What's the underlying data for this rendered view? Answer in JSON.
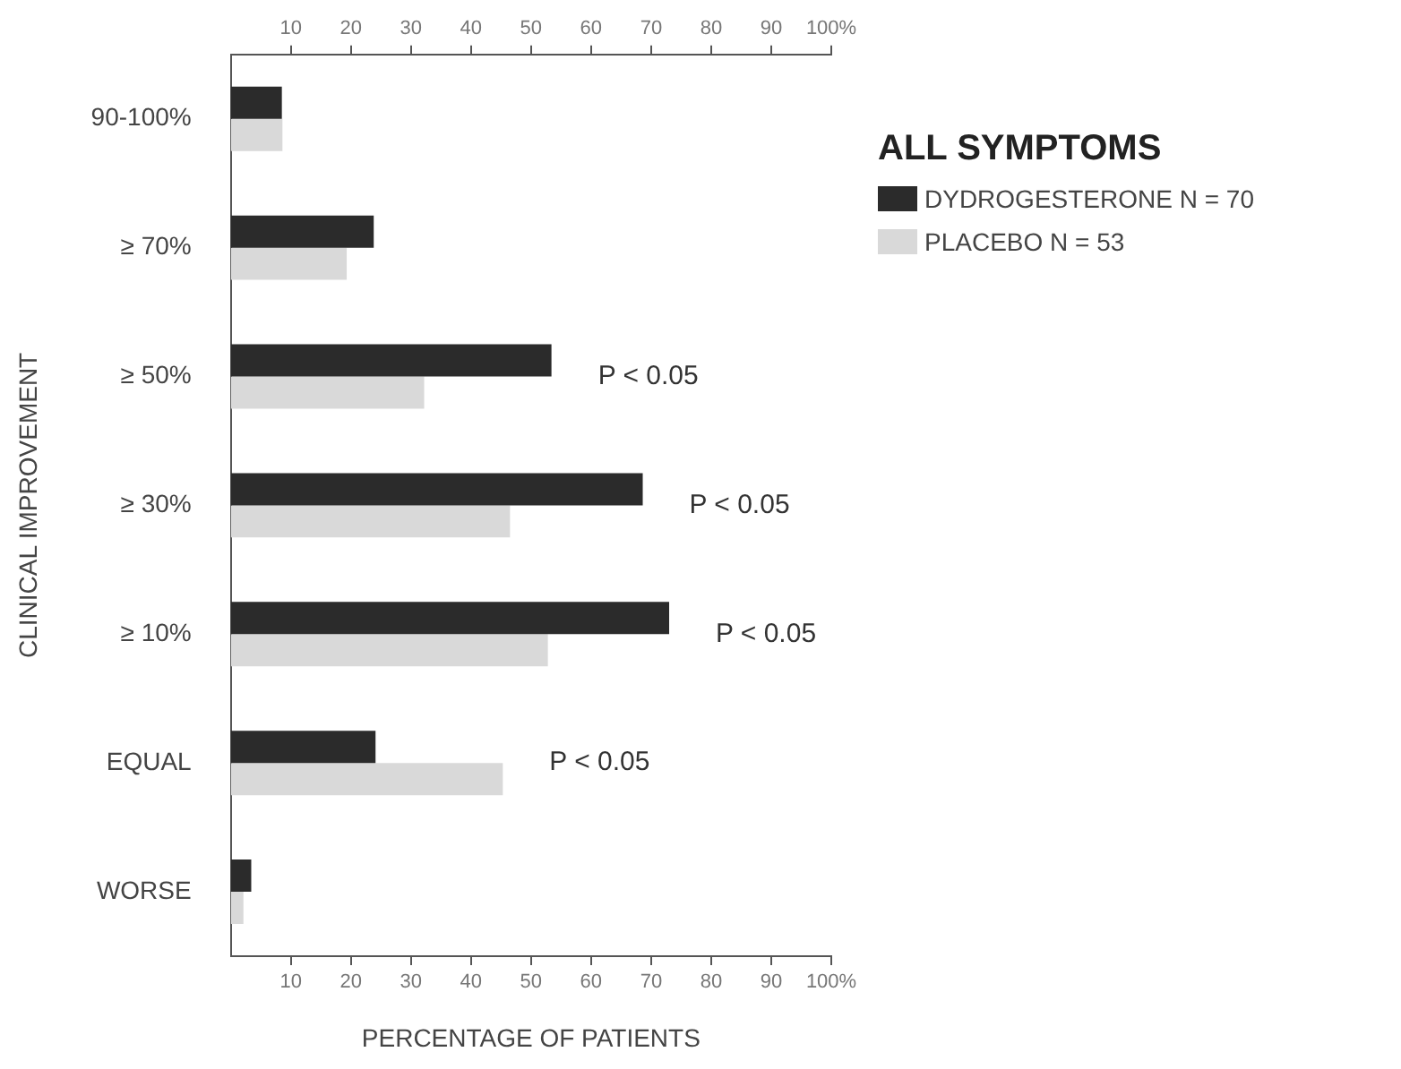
{
  "chart_data": {
    "type": "bar",
    "orientation": "horizontal",
    "title": "ALL SYMPTOMS",
    "xlabel": "PERCENTAGE OF PATIENTS",
    "ylabel": "CLINICAL IMPROVEMENT",
    "categories": [
      "90-100%",
      "≥ 70%",
      "≥ 50%",
      "≥ 30%",
      "≥ 10%",
      "EQUAL",
      "WORSE"
    ],
    "series": [
      {
        "name": "DYDROGESTERONE N = 70",
        "color": "#2b2b2b",
        "values": [
          8.5,
          23.8,
          53.4,
          68.6,
          73.0,
          24.1,
          3.4
        ]
      },
      {
        "name": "PLACEBO N = 53",
        "color": "#d9d9d9",
        "values": [
          8.6,
          19.3,
          32.2,
          46.5,
          52.8,
          45.3,
          2.1
        ]
      }
    ],
    "xlim": [
      0,
      100
    ],
    "xticks": [
      10,
      20,
      30,
      40,
      50,
      60,
      70,
      80,
      90,
      {
        "value": 100,
        "label": "100%"
      }
    ],
    "x2lim": [
      0,
      100
    ],
    "x2ticks": [
      10,
      20,
      30,
      40,
      50,
      60,
      70,
      80,
      90,
      {
        "value": 100,
        "label": "100%"
      }
    ],
    "annotations": [
      {
        "text": "P < 0.05",
        "x": 53.4,
        "y": "≥ 50%"
      },
      {
        "text": "P < 0.05",
        "x": 68.6,
        "y": "≥ 30%"
      },
      {
        "text": "P < 0.05",
        "x": 73.0,
        "y": "≥ 10%"
      },
      {
        "text": "P < 0.05",
        "x": 45.3,
        "y": "EQUAL"
      }
    ],
    "grid": false,
    "legend": "top right"
  }
}
